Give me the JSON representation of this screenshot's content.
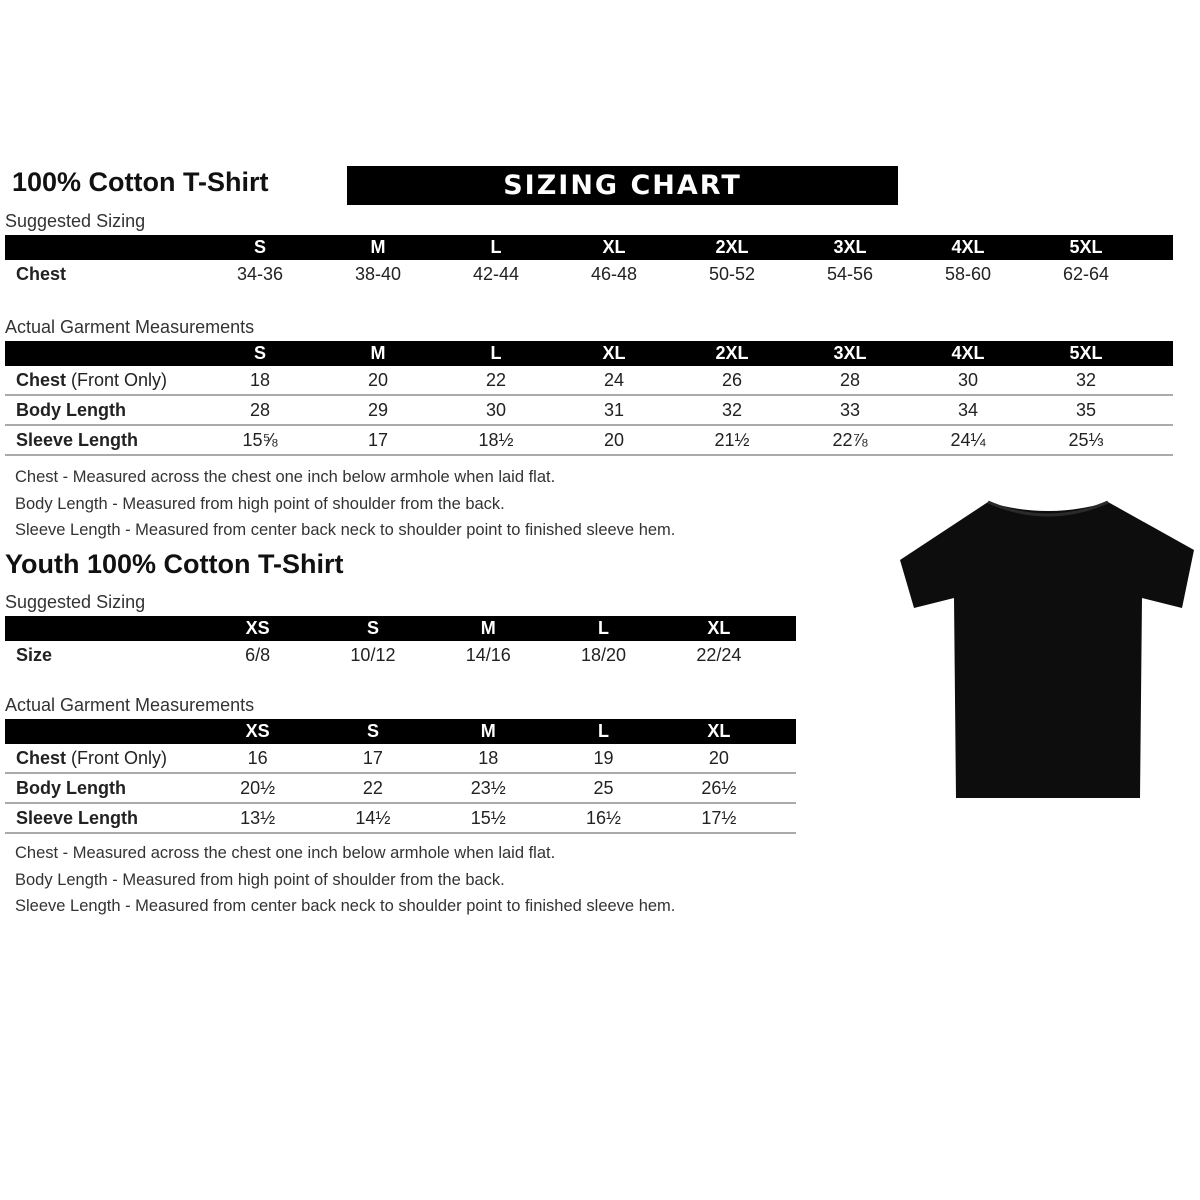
{
  "adult": {
    "title": "100% Cotton T-Shirt",
    "banner": "SIZING CHART",
    "suggested_label": "Suggested Sizing",
    "sizes": [
      "S",
      "M",
      "L",
      "XL",
      "2XL",
      "3XL",
      "4XL",
      "5XL"
    ],
    "suggested_rows": [
      {
        "label": "Chest",
        "values": [
          "34-36",
          "38-40",
          "42-44",
          "46-48",
          "50-52",
          "54-56",
          "58-60",
          "62-64"
        ]
      }
    ],
    "actual_label": "Actual Garment Measurements",
    "actual_rows": [
      {
        "label": "Chest",
        "label_extra": " (Front Only)",
        "values": [
          "18",
          "20",
          "22",
          "24",
          "26",
          "28",
          "30",
          "32"
        ]
      },
      {
        "label": "Body Length",
        "values": [
          "28",
          "29",
          "30",
          "31",
          "32",
          "33",
          "34",
          "35"
        ]
      },
      {
        "label": "Sleeve Length",
        "values": [
          "15⅝",
          "17",
          "18½",
          "20",
          "21½",
          "22⅞",
          "24¼",
          "25⅓"
        ]
      }
    ],
    "notes": [
      "Chest - Measured across the chest one inch below armhole when laid flat.",
      "Body Length - Measured from high point of shoulder from the back.",
      "Sleeve Length - Measured from center back neck to shoulder point to finished sleeve hem."
    ]
  },
  "youth": {
    "title": "Youth 100% Cotton T-Shirt",
    "suggested_label": "Suggested Sizing",
    "sizes": [
      "XS",
      "S",
      "M",
      "L",
      "XL"
    ],
    "suggested_rows": [
      {
        "label": "Size",
        "values": [
          "6/8",
          "10/12",
          "14/16",
          "18/20",
          "22/24"
        ]
      }
    ],
    "actual_label": "Actual Garment Measurements",
    "actual_rows": [
      {
        "label": "Chest",
        "label_extra": " (Front Only)",
        "values": [
          "16",
          "17",
          "18",
          "19",
          "20"
        ]
      },
      {
        "label": "Body Length",
        "values": [
          "20½",
          "22",
          "23½",
          "25",
          "26½"
        ]
      },
      {
        "label": "Sleeve Length",
        "values": [
          "13½",
          "14½",
          "15½",
          "16½",
          "17½"
        ]
      }
    ],
    "notes": [
      "Chest - Measured across the chest one inch below armhole when laid flat.",
      "Body Length - Measured from high point of shoulder from the back.",
      "Sleeve Length - Measured from center back neck to shoulder point to finished sleeve hem."
    ]
  },
  "image": {
    "icon": "tshirt-icon",
    "color": "#0d0d0d"
  }
}
